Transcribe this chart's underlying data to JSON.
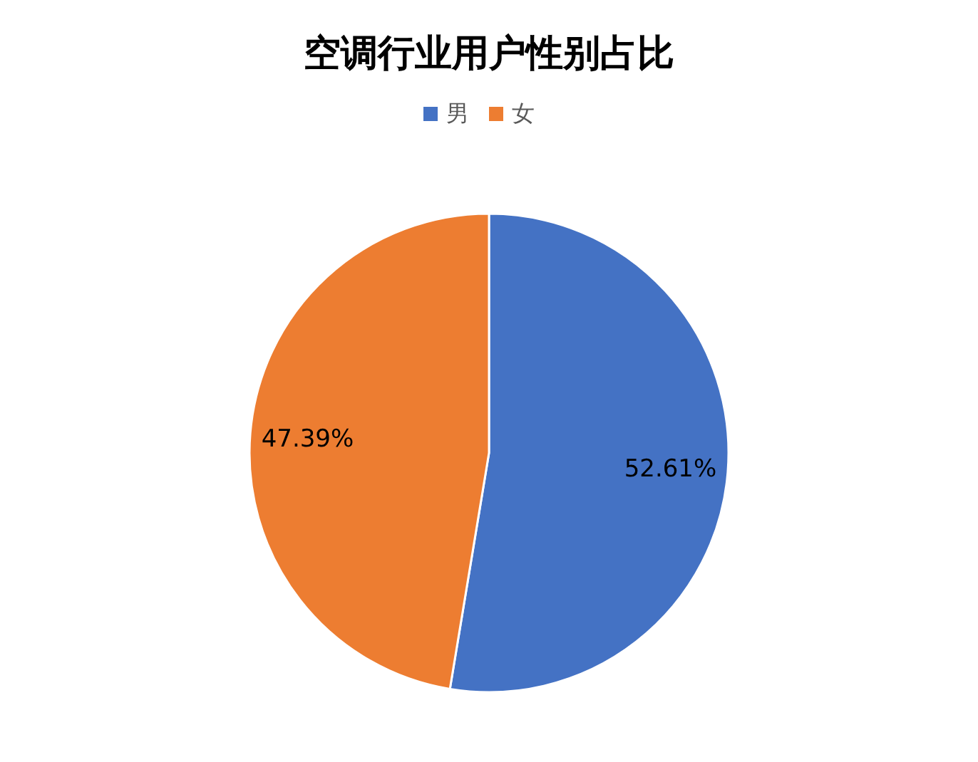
{
  "chart_data": {
    "type": "pie",
    "title": "空调行业用户性别占比",
    "categories": [
      "男",
      "女"
    ],
    "values": [
      52.61,
      47.39
    ],
    "colors": [
      "#4472c4",
      "#ed7d31"
    ],
    "value_labels": [
      "52.61%",
      "47.39%"
    ],
    "legend": "top"
  }
}
